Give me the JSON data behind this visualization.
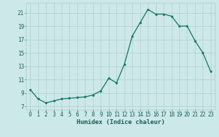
{
  "x": [
    0,
    1,
    2,
    3,
    4,
    5,
    6,
    7,
    8,
    9,
    10,
    11,
    12,
    13,
    14,
    15,
    16,
    17,
    18,
    19,
    20,
    21,
    22,
    23
  ],
  "y": [
    9.5,
    8.1,
    7.5,
    7.8,
    8.1,
    8.2,
    8.3,
    8.4,
    8.7,
    9.3,
    11.2,
    10.5,
    13.3,
    17.5,
    19.5,
    21.5,
    20.8,
    20.8,
    20.5,
    19.0,
    19.0,
    16.8,
    15.0,
    12.2
  ],
  "line_color": "#1a7a6e",
  "marker": "o",
  "marker_size": 2.0,
  "bg_color": "#cce8e8",
  "grid_color": "#b0cccc",
  "xlabel": "Humidex (Indice chaleur)",
  "ylabel_ticks": [
    7,
    9,
    11,
    13,
    15,
    17,
    19,
    21
  ],
  "xlim": [
    -0.5,
    23.5
  ],
  "ylim": [
    6.5,
    22.5
  ],
  "tick_fontsize": 5.5,
  "xlabel_fontsize": 6.5
}
